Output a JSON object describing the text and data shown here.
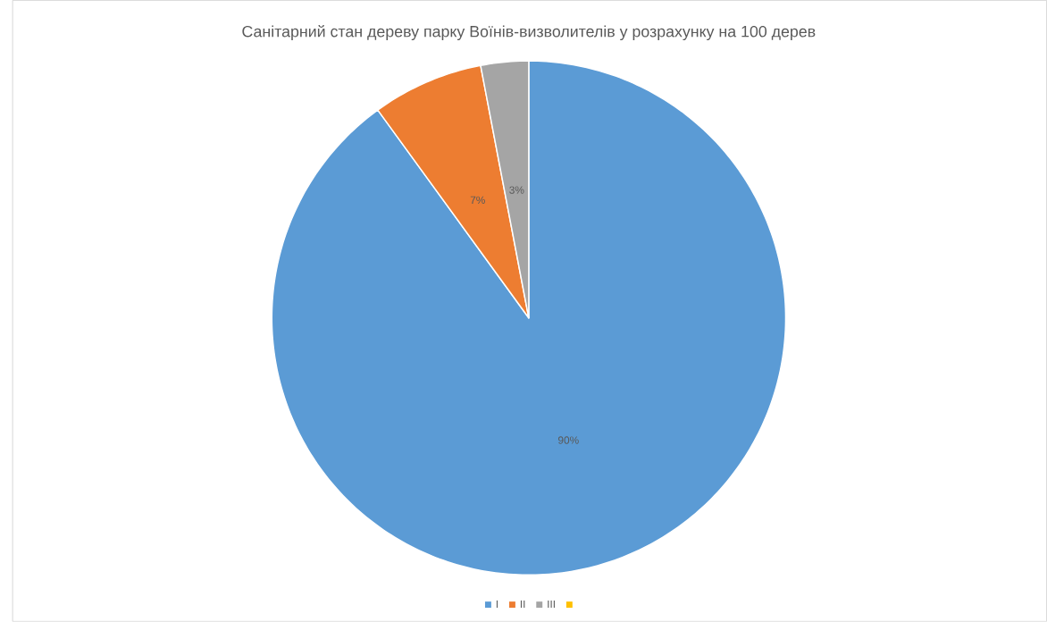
{
  "chart_data": {
    "type": "pie",
    "title": "Санітарний стан дереву парку Воїнів-визволителів у розрахунку на 100 дерев",
    "categories": [
      "I",
      "II",
      "III",
      null
    ],
    "values": [
      90,
      7,
      3,
      0
    ],
    "colors": [
      "#5b9bd5",
      "#ed7d31",
      "#a5a5a5",
      "#ffc000"
    ],
    "value_labels": [
      "90%",
      "7%",
      "3%",
      null
    ],
    "legend": "bottom"
  }
}
